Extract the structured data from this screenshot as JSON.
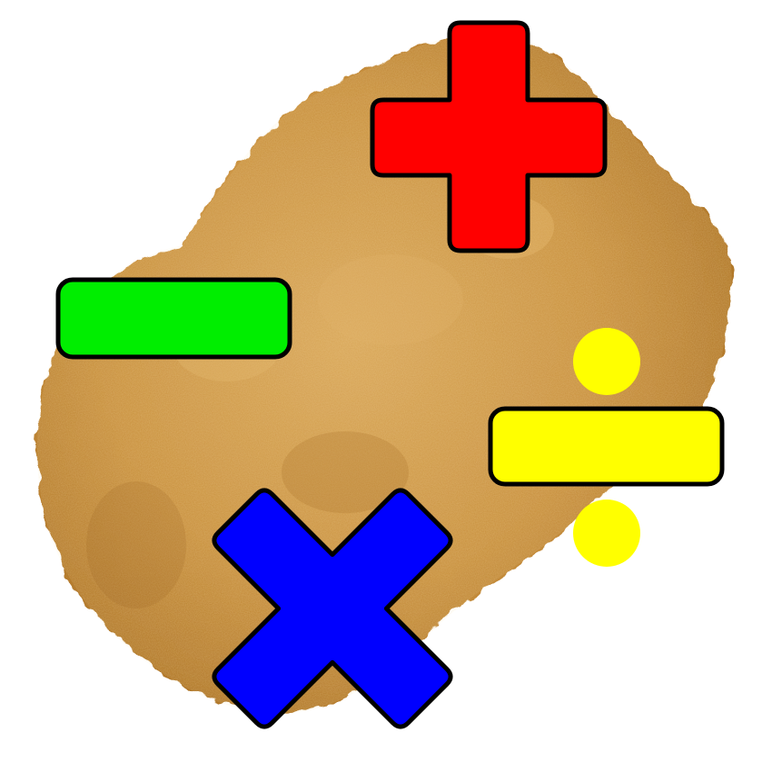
{
  "image": {
    "subject": "chicken-nugget",
    "symbols": [
      {
        "id": "plus",
        "operator": "+",
        "color": "#ff0000"
      },
      {
        "id": "minus",
        "operator": "-",
        "color": "#00ee00"
      },
      {
        "id": "divide",
        "operator": "÷",
        "color": "#ffff00"
      },
      {
        "id": "multiply",
        "operator": "×",
        "color": "#0000ff"
      }
    ],
    "outline_color": "#000000",
    "nugget_color": "#c98f3e"
  }
}
